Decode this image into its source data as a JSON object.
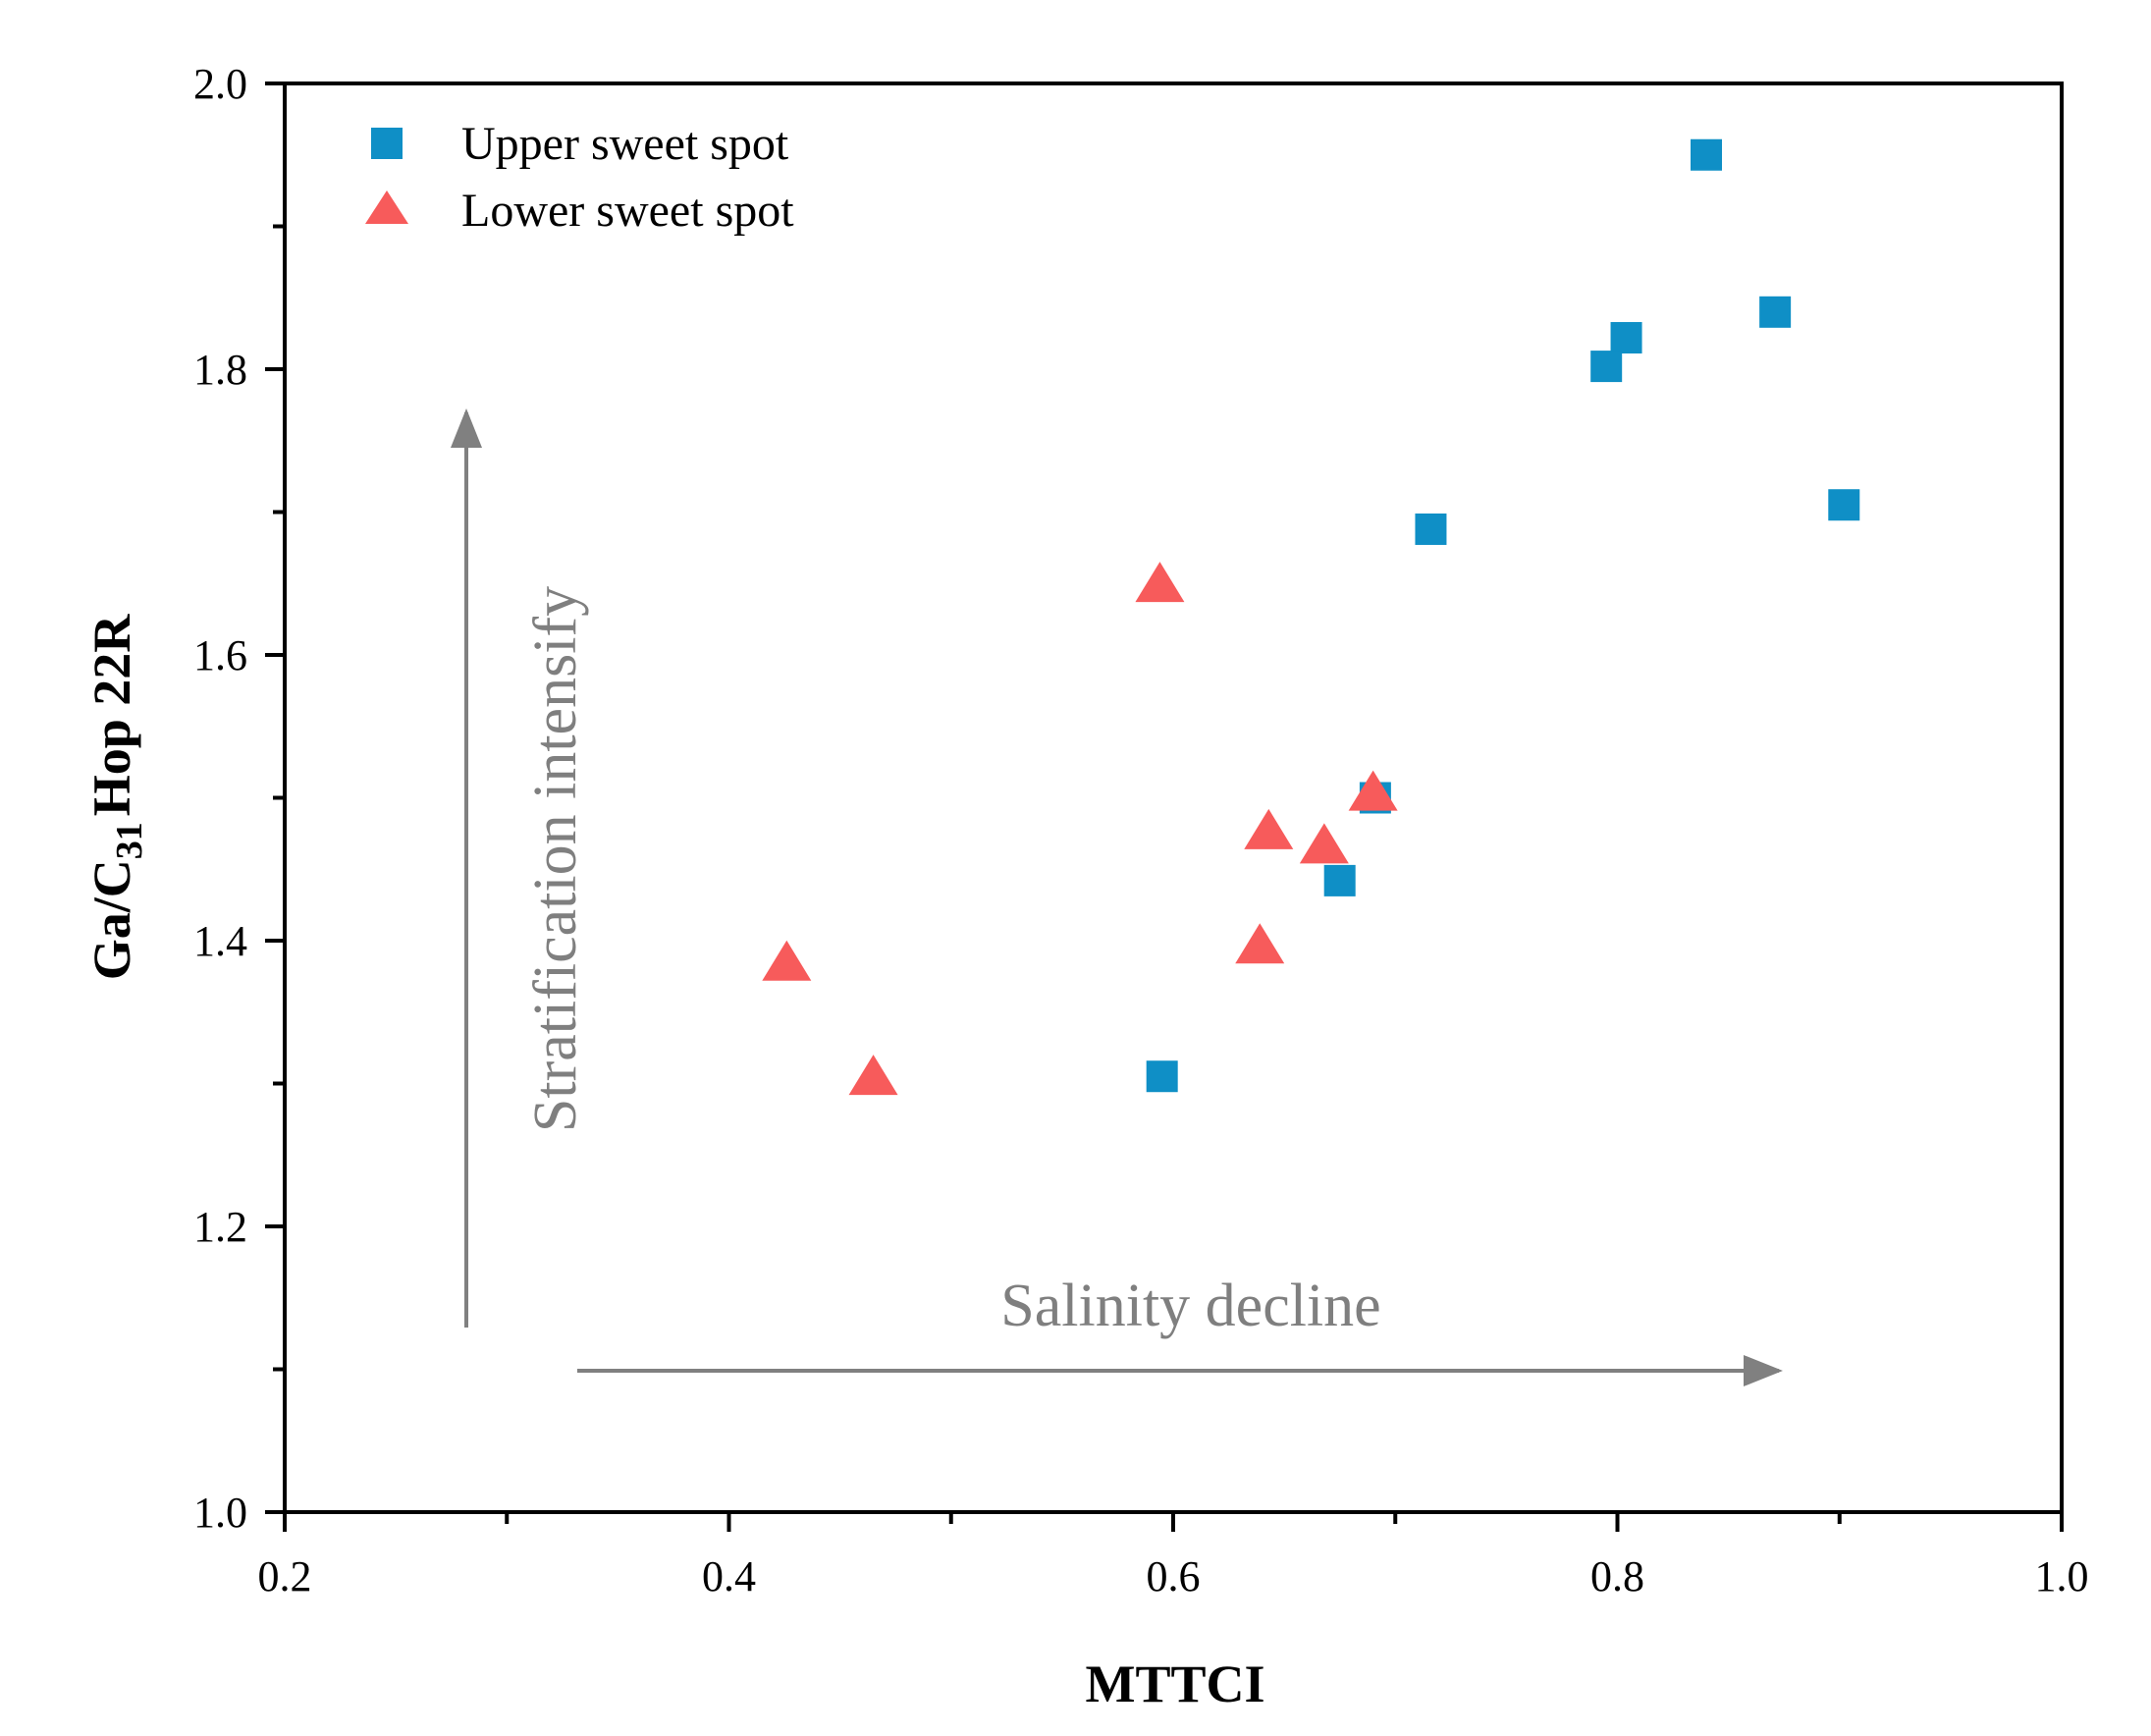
{
  "chart_data": {
    "type": "scatter",
    "title": "",
    "xlabel": "MTTCI",
    "ylabel": {
      "prefix": "Ga/C",
      "subscript": "31",
      "suffix": "Hop 22R"
    },
    "xlim": [
      0.2,
      1.0
    ],
    "ylim": [
      1.0,
      2.0
    ],
    "x_ticks": [
      0.2,
      0.4,
      0.6,
      0.8,
      1.0
    ],
    "x_tick_labels": [
      "0.2",
      "0.4",
      "0.6",
      "0.8",
      "1.0"
    ],
    "x_minor_ticks": [
      0.3,
      0.5,
      0.7,
      0.9
    ],
    "y_ticks": [
      1.0,
      1.2,
      1.4,
      1.6,
      1.8,
      2.0
    ],
    "y_tick_labels": [
      "1.0",
      "1.2",
      "1.4",
      "1.6",
      "1.8",
      "2.0"
    ],
    "y_minor_ticks": [
      1.1,
      1.3,
      1.5,
      1.7,
      1.9
    ],
    "grid": false,
    "legend_position": "top-left",
    "series": [
      {
        "name": "Upper sweet spot",
        "marker": "square",
        "color": "#0F8FC6",
        "points": [
          {
            "x": 0.84,
            "y": 1.95
          },
          {
            "x": 0.871,
            "y": 1.84
          },
          {
            "x": 0.804,
            "y": 1.822
          },
          {
            "x": 0.795,
            "y": 1.802
          },
          {
            "x": 0.902,
            "y": 1.705
          },
          {
            "x": 0.716,
            "y": 1.688
          },
          {
            "x": 0.691,
            "y": 1.5
          },
          {
            "x": 0.675,
            "y": 1.442
          },
          {
            "x": 0.595,
            "y": 1.305
          }
        ]
      },
      {
        "name": "Lower sweet spot",
        "marker": "triangle",
        "color": "#F75B5B",
        "points": [
          {
            "x": 0.594,
            "y": 1.648
          },
          {
            "x": 0.69,
            "y": 1.502
          },
          {
            "x": 0.643,
            "y": 1.475
          },
          {
            "x": 0.668,
            "y": 1.465
          },
          {
            "x": 0.639,
            "y": 1.395
          },
          {
            "x": 0.426,
            "y": 1.383
          },
          {
            "x": 0.465,
            "y": 1.303
          }
        ]
      }
    ],
    "annotations": [
      {
        "id": "vertical",
        "text": "Stratification intensify",
        "direction": "up",
        "color": "#808080"
      },
      {
        "id": "horizontal",
        "text": "Salinity decline",
        "direction": "right",
        "color": "#808080"
      }
    ]
  }
}
